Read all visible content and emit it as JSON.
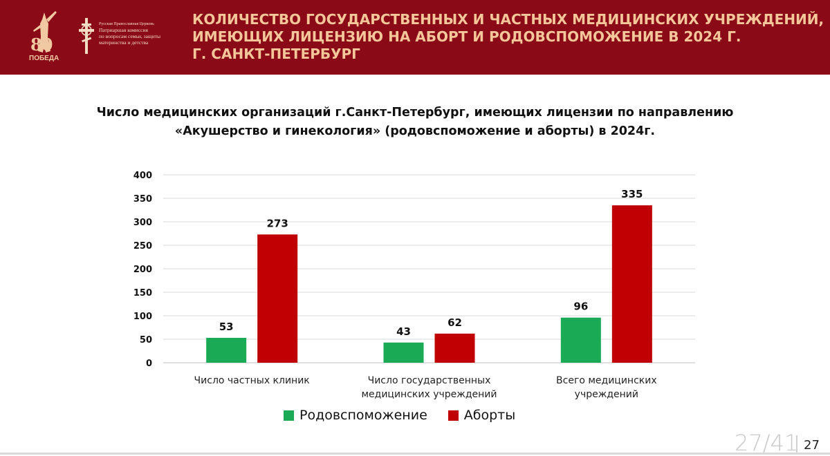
{
  "header": {
    "title_lines": [
      "КОЛИЧЕСТВО ГОСУДАРСТВЕННЫХ И ЧАСТНЫХ МЕДИЦИНСКИХ УЧРЕЖДЕНИЙ,",
      "ИМЕЮЩИХ ЛИЦЕНЗИЮ НА АБОРТ И РОДОВСПОМОЖЕНИЕ В 2024 Г.",
      "Г. САНКТ-ПЕТЕРБУРГ"
    ],
    "victory_logo": {
      "number": "80",
      "word": "ПОБЕДА"
    },
    "church_logo": {
      "small": "Русская Православная Церковь",
      "lines": [
        "Патриаршая комиссия",
        "по вопросам семьи, защиты",
        "материнства и детства"
      ]
    },
    "colors": {
      "background": "#8b0a17",
      "title": "#f3c79a"
    }
  },
  "subtitle_lines": [
    "Число медицинских организаций г.Санкт-Петербург, имеющих лицензии по направлению",
    "«Акушерство и гинекология» (родовспоможение и аборты) в 2024г."
  ],
  "chart_data": {
    "type": "bar",
    "title": "Число медицинских организаций г.Санкт-Петербург, имеющих лицензии по направлению «Акушерство и гинекология» (родовспоможение и аборты) в 2024г.",
    "categories": [
      [
        "Число частных клиник"
      ],
      [
        "Число государственных",
        "медицинских учреждений"
      ],
      [
        "Всего медицинских",
        "учреждений"
      ]
    ],
    "series": [
      {
        "name": "Родовспоможение",
        "color": "#1aaa55",
        "values": [
          53,
          43,
          96
        ]
      },
      {
        "name": "Аборты",
        "color": "#c00000",
        "values": [
          273,
          62,
          335
        ]
      }
    ],
    "ylim": [
      0,
      400
    ],
    "yticks": [
      0,
      50,
      100,
      150,
      200,
      250,
      300,
      350,
      400
    ],
    "xlabel": "",
    "ylabel": "",
    "grid": true,
    "legend_position": "bottom"
  },
  "footer": {
    "page_counter": "27/41",
    "page_number": "27"
  }
}
